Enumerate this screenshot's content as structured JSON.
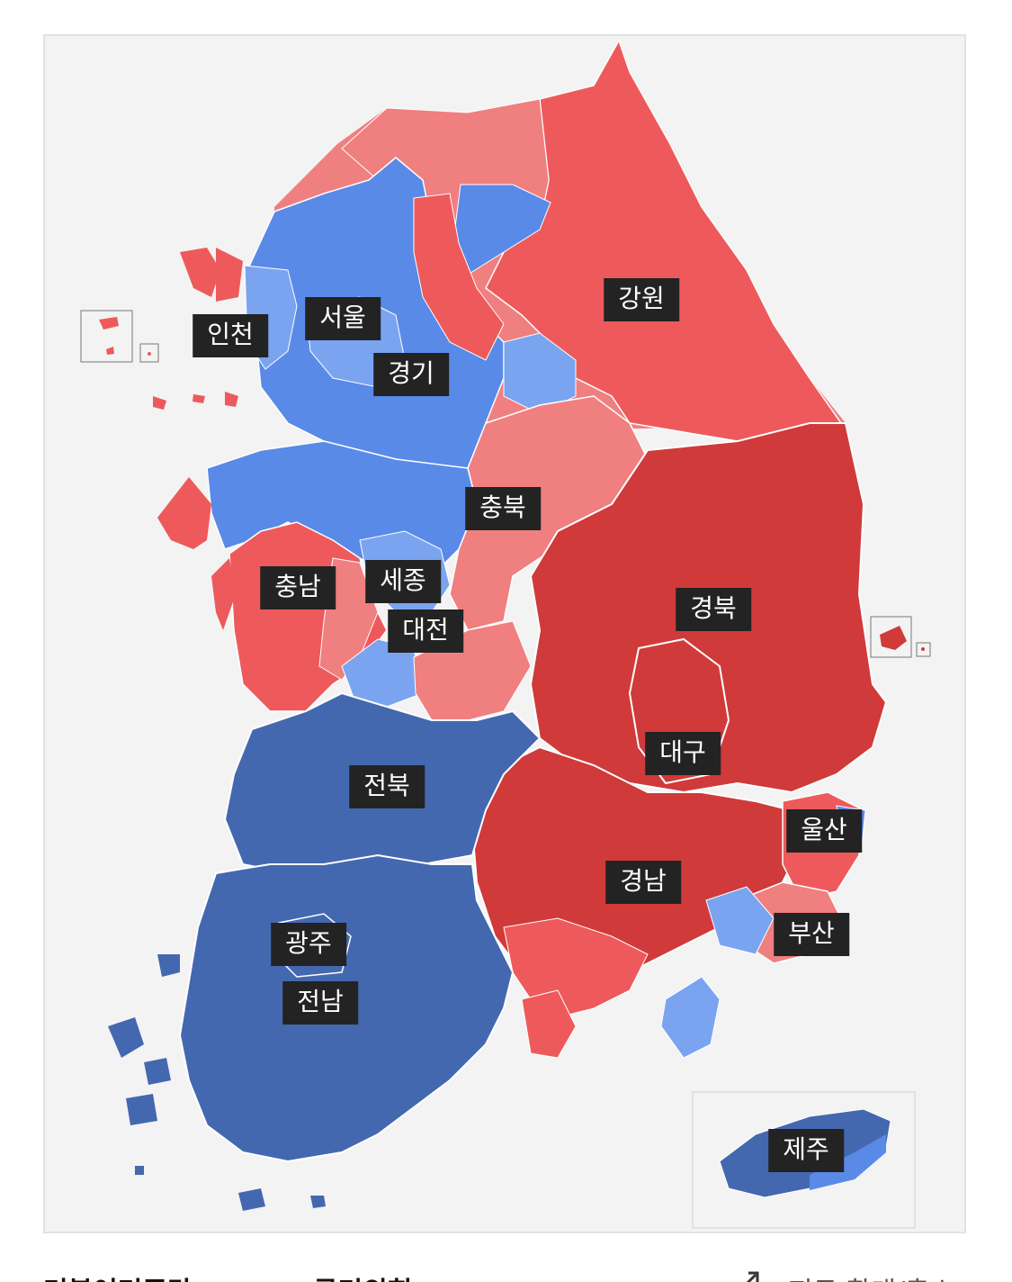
{
  "colors": {
    "background": "#f3f3f3",
    "border": "#e2e2e2",
    "red_light": "#f07f80",
    "red_mid": "#ee5a5b",
    "red_dark": "#d03a3a",
    "blue_light": "#7aa4ef",
    "blue_mid": "#5a8ae8",
    "blue_dark": "#4468b0",
    "label_bg": "#232323"
  },
  "regions": [
    {
      "key": "incheon",
      "label": "인천",
      "party": "blue"
    },
    {
      "key": "seoul",
      "label": "서울",
      "party": "blue"
    },
    {
      "key": "gyeonggi",
      "label": "경기",
      "party": "blue"
    },
    {
      "key": "gangwon",
      "label": "강원",
      "party": "red"
    },
    {
      "key": "chungbuk",
      "label": "충북",
      "party": "red"
    },
    {
      "key": "chungnam",
      "label": "충남",
      "party": "red"
    },
    {
      "key": "sejong",
      "label": "세종",
      "party": "blue"
    },
    {
      "key": "daejeon",
      "label": "대전",
      "party": "blue"
    },
    {
      "key": "gyeongbuk",
      "label": "경북",
      "party": "red"
    },
    {
      "key": "daegu",
      "label": "대구",
      "party": "red"
    },
    {
      "key": "jeonbuk",
      "label": "전북",
      "party": "blue"
    },
    {
      "key": "ulsan",
      "label": "울산",
      "party": "red"
    },
    {
      "key": "gyeongnam",
      "label": "경남",
      "party": "red"
    },
    {
      "key": "busan",
      "label": "부산",
      "party": "red"
    },
    {
      "key": "gwangju",
      "label": "광주",
      "party": "blue"
    },
    {
      "key": "jeonnam",
      "label": "전남",
      "party": "blue"
    },
    {
      "key": "jeju",
      "label": "제주",
      "party": "blue"
    }
  ],
  "legend": {
    "party_left": "더불어민주당",
    "party_right": "국민의힘",
    "zoom": "지도 확대/축소"
  }
}
